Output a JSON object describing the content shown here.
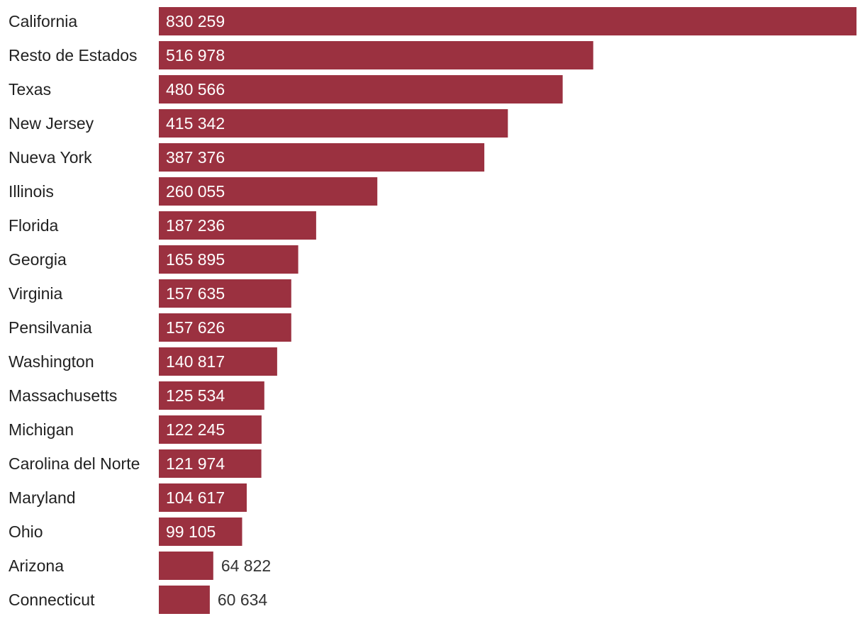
{
  "chart_data": {
    "type": "bar",
    "orientation": "horizontal",
    "title": "",
    "xlabel": "",
    "ylabel": "",
    "grid": false,
    "legend": "none",
    "bar_color": "#9b3140",
    "inside_label_color": "#ffffff",
    "outside_label_color": "#333333",
    "xlim": [
      0,
      830259
    ],
    "categories": [
      "California",
      "Resto de Estados",
      "Texas",
      "New Jersey",
      "Nueva York",
      "Illinois",
      "Florida",
      "Georgia",
      "Virginia",
      "Pensilvania",
      "Washington",
      "Massachusetts",
      "Michigan",
      "Carolina del Norte",
      "Maryland",
      "Ohio",
      "Arizona",
      "Connecticut"
    ],
    "values": [
      830259,
      516978,
      480566,
      415342,
      387376,
      260055,
      187236,
      165895,
      157635,
      157626,
      140817,
      125534,
      122245,
      121974,
      104617,
      99105,
      64822,
      60634
    ],
    "value_labels": [
      "830 259",
      "516 978",
      "480 566",
      "415 342",
      "387 376",
      "260 055",
      "187 236",
      "165 895",
      "157 635",
      "157 626",
      "140 817",
      "125 534",
      "122 245",
      "121 974",
      "104 617",
      "99 105",
      "64 822",
      "60 634"
    ]
  }
}
